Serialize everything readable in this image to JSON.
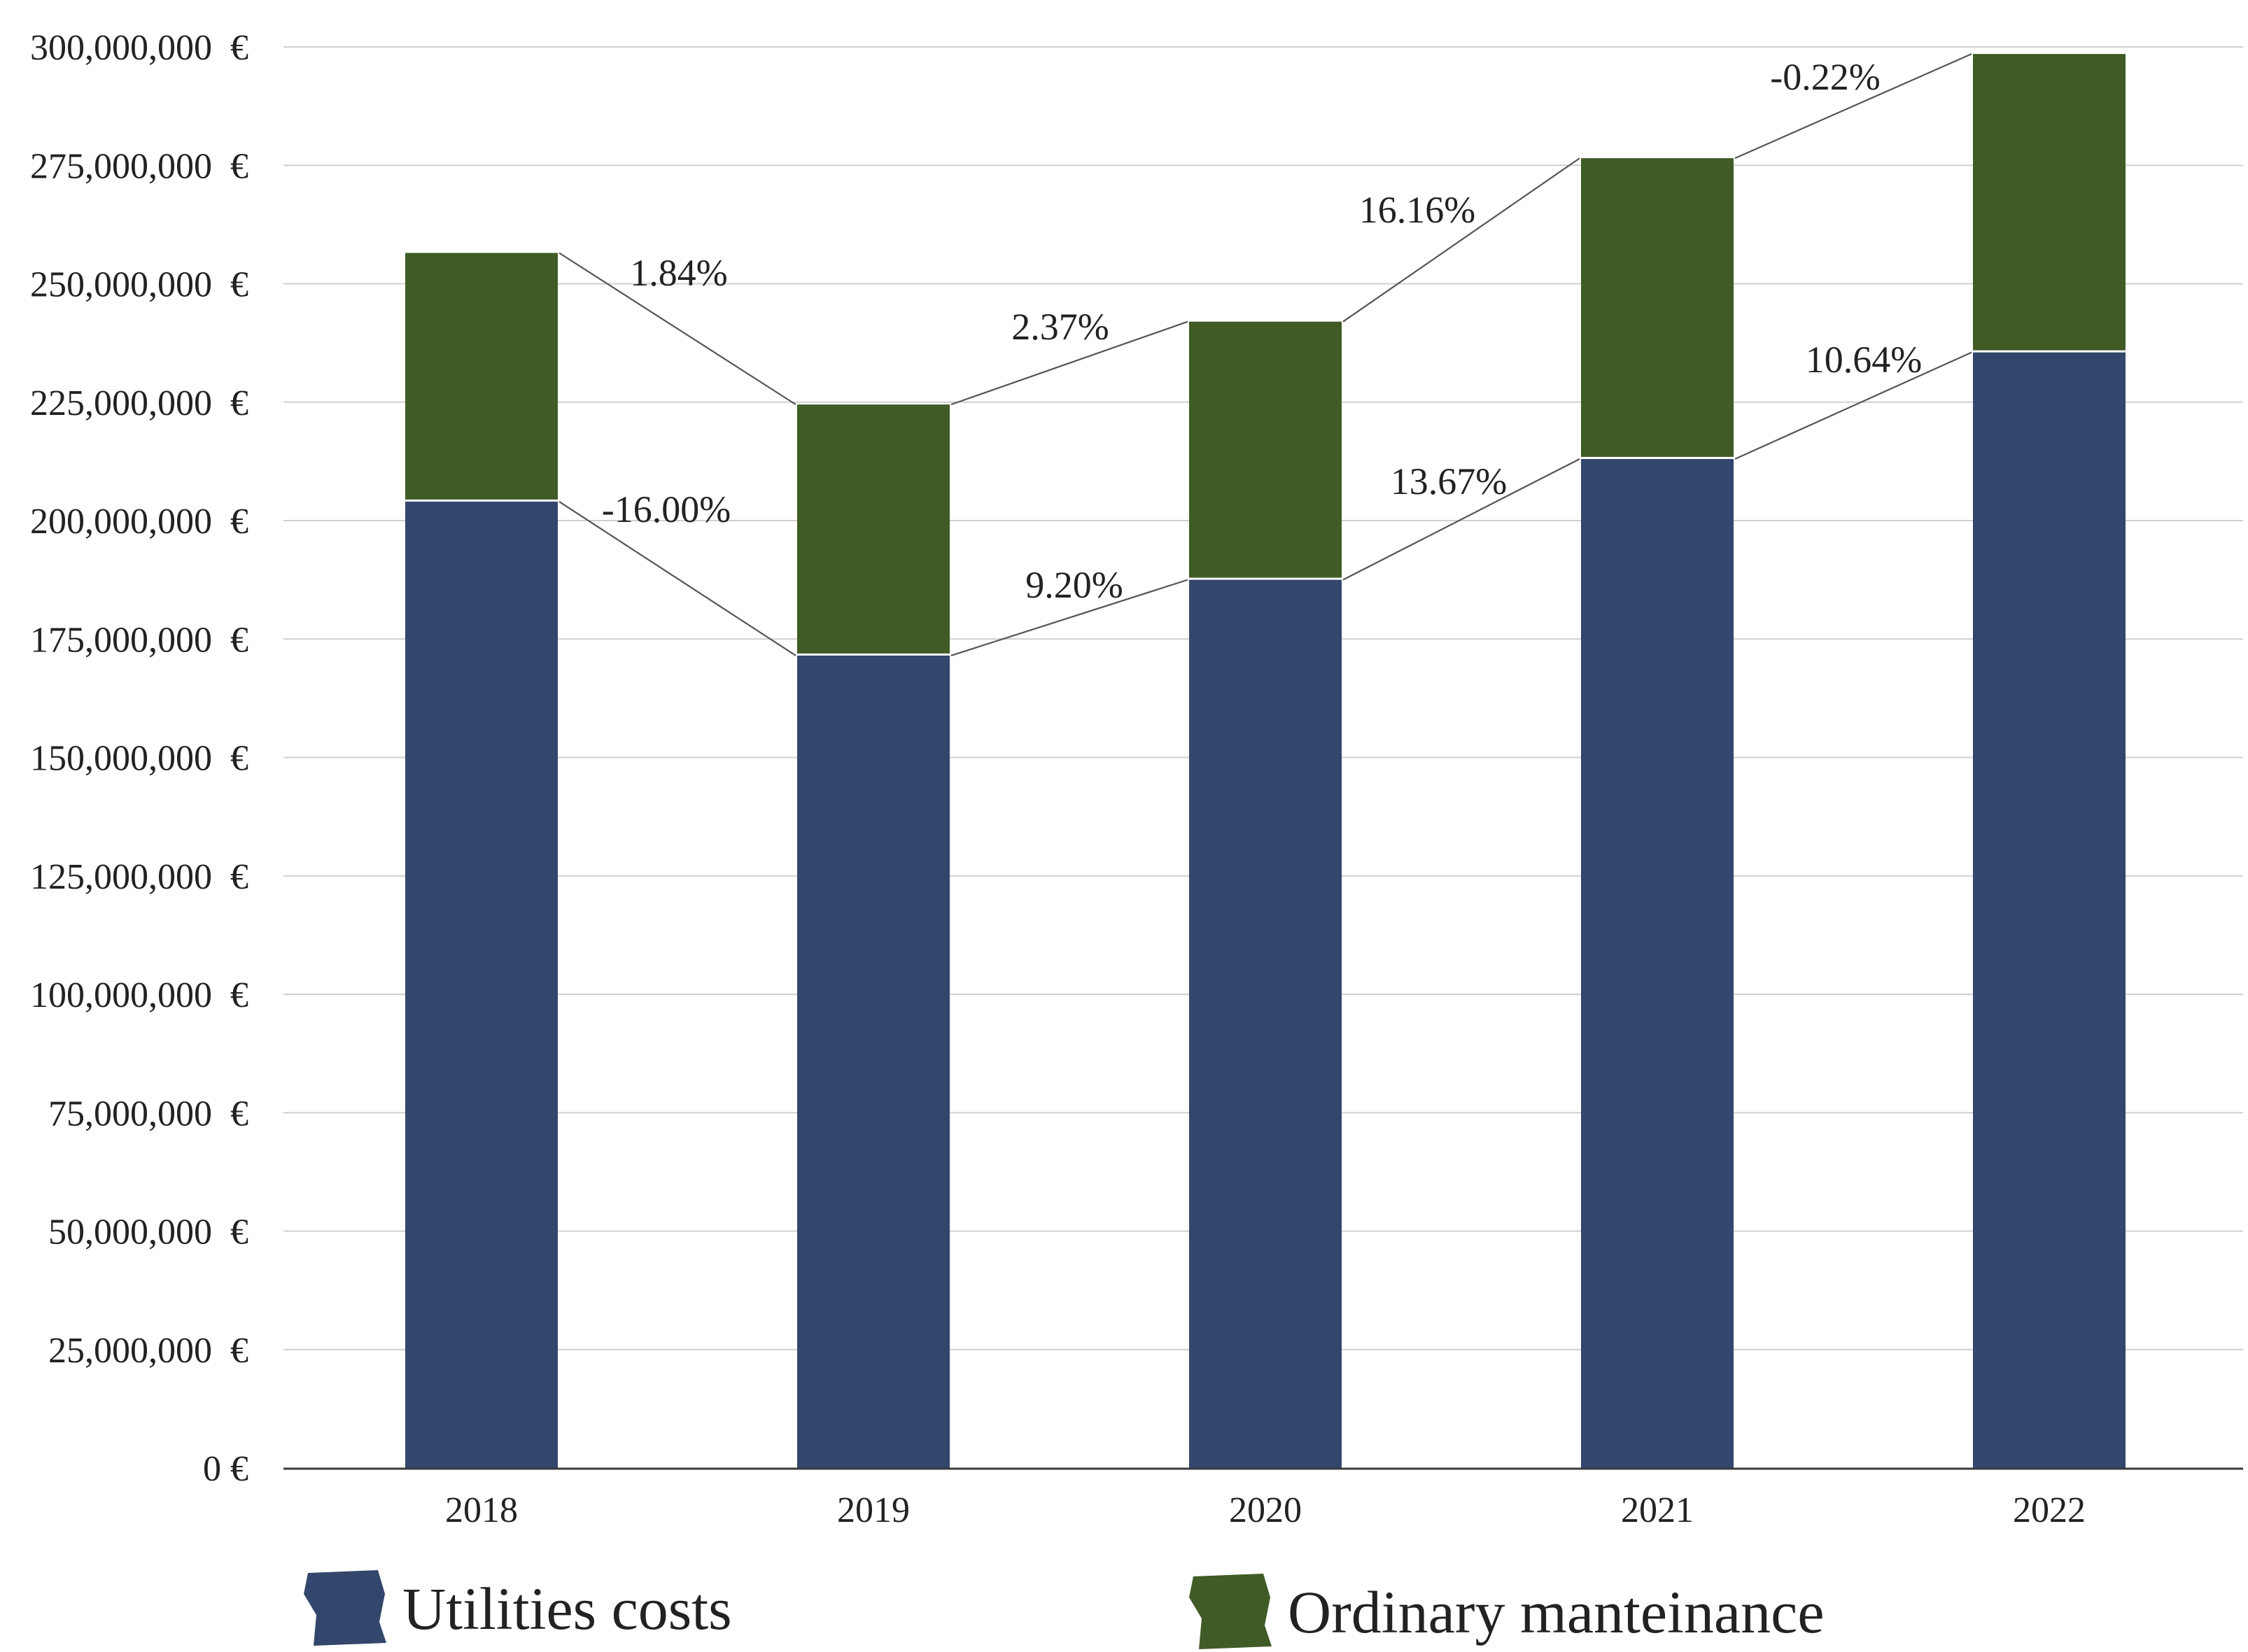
{
  "chart_data": {
    "type": "bar",
    "stacked": true,
    "categories": [
      "2018",
      "2019",
      "2020",
      "2021",
      "2022"
    ],
    "series": [
      {
        "name": "Utilities costs",
        "color": "#33466b",
        "values": [
          204000000,
          171500000,
          187500000,
          213000000,
          235500000
        ]
      },
      {
        "name": "Ordinary manteinance",
        "color": "#405b26",
        "values": [
          52500000,
          53000000,
          54500000,
          63500000,
          63000000
        ]
      }
    ],
    "ylim": [
      0,
      300000000
    ],
    "ytick_step": 25000000,
    "ytick_labels": [
      "0 €",
      "25,000,000  €",
      "50,000,000  €",
      "75,000,000  €",
      "100,000,000  €",
      "125,000,000  €",
      "150,000,000  €",
      "175,000,000  €",
      "200,000,000  €",
      "225,000,000  €",
      "250,000,000  €",
      "275,000,000  €",
      "300,000,000  €"
    ],
    "grid": true,
    "legend_position": "bottom",
    "connector_annotations": {
      "total": [
        "1.84%",
        "2.37%",
        "16.16%",
        "-0.22%"
      ],
      "utilities": [
        "-16.00%",
        "9.20%",
        "13.67%",
        "10.64%"
      ]
    }
  }
}
